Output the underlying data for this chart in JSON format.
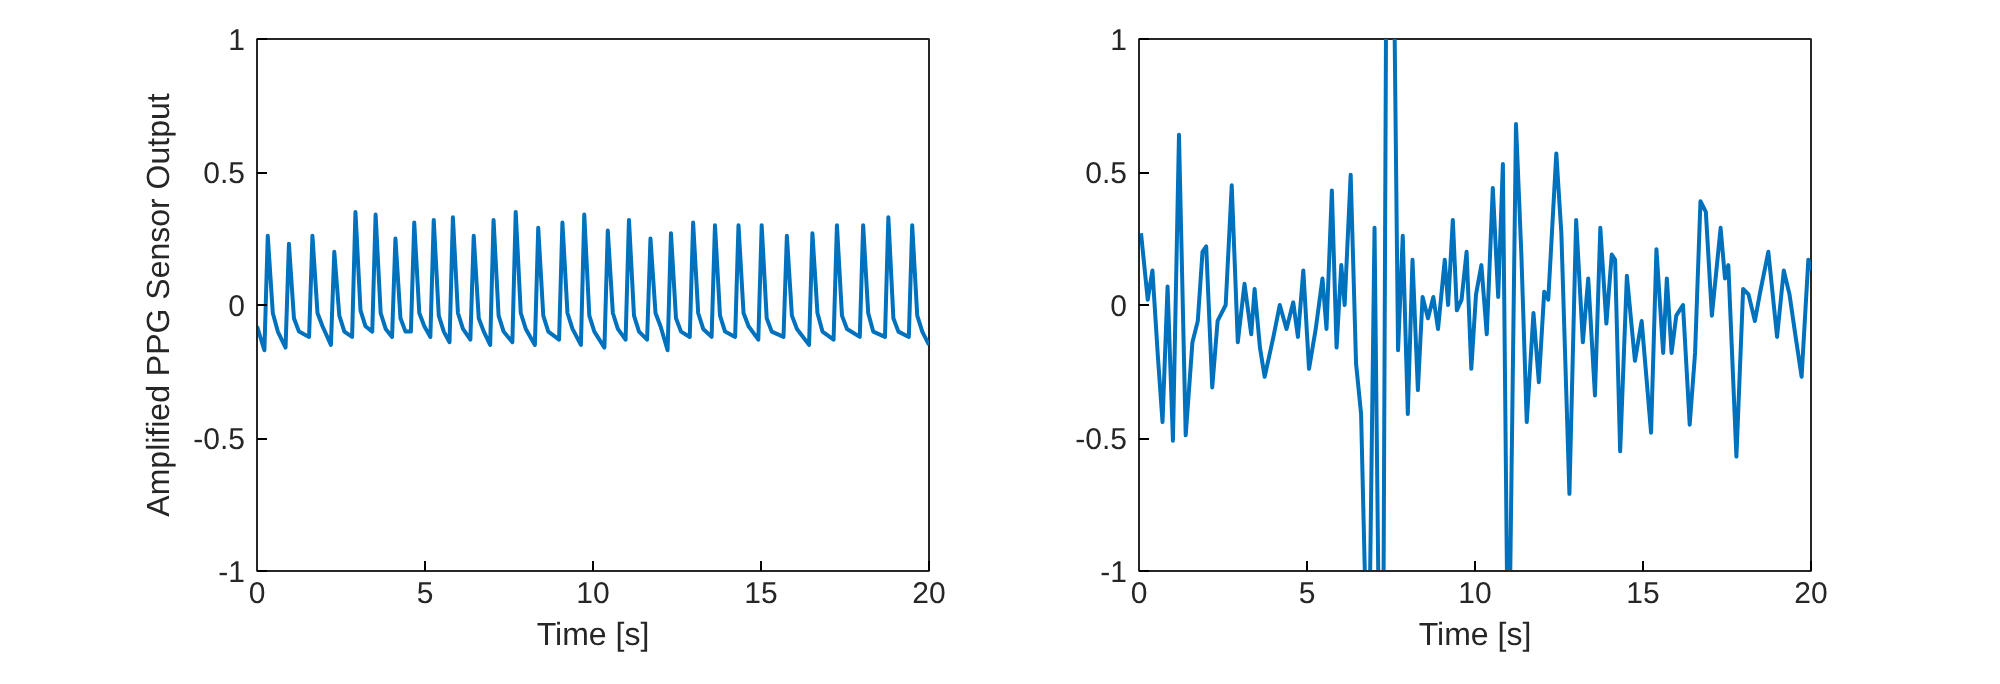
{
  "chart_data": [
    {
      "type": "line",
      "xlabel": "Time [s]",
      "ylabel": "Amplified PPG Sensor Output",
      "color": "#0072bd",
      "xlim": [
        0,
        20
      ],
      "ylim": [
        -1,
        1
      ],
      "xticks": [
        0,
        5,
        10,
        15,
        20
      ],
      "yticks": [
        -1,
        -0.5,
        0,
        0.5,
        1
      ],
      "x": [
        0,
        0.22,
        0.32,
        0.47,
        0.62,
        0.85,
        0.95,
        1.1,
        1.25,
        1.55,
        1.65,
        1.8,
        1.95,
        2.2,
        2.3,
        2.45,
        2.6,
        2.83,
        2.93,
        3.08,
        3.23,
        3.43,
        3.53,
        3.68,
        3.83,
        4.02,
        4.12,
        4.27,
        4.42,
        4.58,
        4.68,
        4.83,
        4.98,
        5.16,
        5.26,
        5.41,
        5.56,
        5.73,
        5.83,
        5.98,
        6.13,
        6.35,
        6.45,
        6.6,
        6.75,
        6.94,
        7.04,
        7.19,
        7.34,
        7.6,
        7.7,
        7.85,
        8.0,
        8.27,
        8.37,
        8.52,
        8.67,
        8.99,
        9.09,
        9.24,
        9.39,
        9.64,
        9.74,
        9.89,
        10.04,
        10.34,
        10.44,
        10.59,
        10.74,
        10.97,
        11.07,
        11.22,
        11.37,
        11.61,
        11.71,
        11.86,
        12.01,
        12.22,
        12.32,
        12.47,
        12.62,
        12.88,
        12.98,
        13.13,
        13.28,
        13.53,
        13.63,
        13.78,
        13.93,
        14.23,
        14.33,
        14.48,
        14.63,
        14.92,
        15.02,
        15.17,
        15.32,
        15.67,
        15.77,
        15.92,
        16.07,
        16.43,
        16.53,
        16.68,
        16.83,
        17.16,
        17.26,
        17.41,
        17.56,
        17.94,
        18.04,
        18.19,
        18.34,
        18.69,
        18.79,
        18.94,
        19.09,
        19.4,
        19.5,
        19.65,
        19.8,
        20
      ],
      "values": [
        -0.08,
        -0.17,
        0.26,
        -0.03,
        -0.1,
        -0.16,
        0.23,
        -0.05,
        -0.1,
        -0.12,
        0.26,
        -0.03,
        -0.08,
        -0.15,
        0.2,
        -0.04,
        -0.1,
        -0.12,
        0.35,
        -0.02,
        -0.08,
        -0.1,
        0.34,
        -0.03,
        -0.09,
        -0.12,
        0.25,
        -0.05,
        -0.1,
        -0.1,
        0.31,
        -0.03,
        -0.08,
        -0.12,
        0.32,
        -0.04,
        -0.1,
        -0.14,
        0.33,
        -0.03,
        -0.09,
        -0.13,
        0.26,
        -0.05,
        -0.1,
        -0.15,
        0.32,
        -0.04,
        -0.1,
        -0.14,
        0.35,
        -0.03,
        -0.09,
        -0.15,
        0.29,
        -0.04,
        -0.1,
        -0.13,
        0.31,
        -0.03,
        -0.09,
        -0.15,
        0.34,
        -0.04,
        -0.1,
        -0.16,
        0.28,
        -0.03,
        -0.09,
        -0.13,
        0.32,
        -0.04,
        -0.1,
        -0.13,
        0.25,
        -0.03,
        -0.08,
        -0.17,
        0.27,
        -0.05,
        -0.1,
        -0.12,
        0.31,
        -0.03,
        -0.09,
        -0.12,
        0.3,
        -0.04,
        -0.1,
        -0.12,
        0.3,
        -0.03,
        -0.08,
        -0.13,
        0.3,
        -0.05,
        -0.1,
        -0.12,
        0.26,
        -0.04,
        -0.09,
        -0.15,
        0.27,
        -0.03,
        -0.1,
        -0.13,
        0.3,
        -0.04,
        -0.09,
        -0.12,
        0.3,
        -0.03,
        -0.1,
        -0.12,
        0.33,
        -0.05,
        -0.1,
        -0.12,
        0.3,
        -0.04,
        -0.1,
        -0.15
      ]
    },
    {
      "type": "line",
      "xlabel": "Time [s]",
      "color": "#0072bd",
      "xlim": [
        0,
        20
      ],
      "ylim": [
        -1,
        1
      ],
      "xticks": [
        0,
        5,
        10,
        15,
        20
      ],
      "yticks": [
        -1,
        -0.5,
        0,
        0.5,
        1
      ],
      "x": [
        0.06,
        0.26,
        0.4,
        0.56,
        0.7,
        0.85,
        1.01,
        1.19,
        1.39,
        1.59,
        1.75,
        1.89,
        2.0,
        2.18,
        2.34,
        2.58,
        2.76,
        2.94,
        3.14,
        3.34,
        3.44,
        3.6,
        3.74,
        4.0,
        4.19,
        4.39,
        4.59,
        4.73,
        4.89,
        5.06,
        5.26,
        5.46,
        5.58,
        5.74,
        5.88,
        6.02,
        6.12,
        6.3,
        6.46,
        6.61,
        6.72,
        6.8,
        6.88,
        7.01,
        7.12,
        7.2,
        7.28,
        7.35,
        7.48,
        7.61,
        7.71,
        7.85,
        8.0,
        8.14,
        8.3,
        8.44,
        8.6,
        8.76,
        8.9,
        9.1,
        9.2,
        9.34,
        9.46,
        9.6,
        9.75,
        9.89,
        10.03,
        10.19,
        10.35,
        10.53,
        10.69,
        10.83,
        10.95,
        11.0,
        11.05,
        11.22,
        11.38,
        11.54,
        11.74,
        11.9,
        12.06,
        12.18,
        12.42,
        12.57,
        12.81,
        13.01,
        13.21,
        13.37,
        13.57,
        13.73,
        13.91,
        14.07,
        14.17,
        14.32,
        14.52,
        14.76,
        14.96,
        15.24,
        15.4,
        15.6,
        15.71,
        15.85,
        15.99,
        16.19,
        16.39,
        16.55,
        16.71,
        16.87,
        17.05,
        17.31,
        17.44,
        17.54,
        17.78,
        17.98,
        18.14,
        18.33,
        18.49,
        18.73,
        18.99,
        19.19,
        19.36,
        19.52,
        19.72,
        19.92,
        20.0
      ],
      "values": [
        0.27,
        0.02,
        0.13,
        -0.19,
        -0.44,
        0.07,
        -0.51,
        0.64,
        -0.49,
        -0.14,
        -0.06,
        0.2,
        0.22,
        -0.31,
        -0.06,
        0.0,
        0.45,
        -0.14,
        0.08,
        -0.11,
        0.06,
        -0.16,
        -0.27,
        -0.12,
        0.0,
        -0.09,
        0.01,
        -0.12,
        0.13,
        -0.24,
        -0.09,
        0.1,
        -0.09,
        0.43,
        -0.16,
        0.15,
        0.0,
        0.49,
        -0.22,
        -0.41,
        -1,
        null,
        -1,
        0.29,
        -1,
        null,
        -1,
        1,
        null,
        1,
        -0.17,
        0.26,
        -0.41,
        0.17,
        -0.32,
        0.03,
        -0.05,
        0.03,
        -0.09,
        0.17,
        0.0,
        0.32,
        -0.02,
        0.02,
        0.2,
        -0.24,
        0.04,
        0.15,
        -0.11,
        0.44,
        0.03,
        0.53,
        -1,
        null,
        -1,
        0.68,
        0.19,
        -0.44,
        -0.03,
        -0.29,
        0.05,
        0.02,
        0.57,
        0.27,
        -0.71,
        0.32,
        -0.14,
        0.1,
        -0.34,
        0.29,
        -0.07,
        0.19,
        0.17,
        -0.55,
        0.11,
        -0.21,
        -0.06,
        -0.48,
        0.21,
        -0.18,
        0.1,
        -0.18,
        -0.04,
        0.0,
        -0.45,
        -0.18,
        0.39,
        0.35,
        -0.04,
        0.29,
        0.1,
        0.15,
        -0.57,
        0.06,
        0.04,
        -0.06,
        0.05,
        0.2,
        -0.12,
        0.13,
        0.04,
        -0.1,
        -0.27,
        0.17,
        0.13
      ]
    }
  ]
}
